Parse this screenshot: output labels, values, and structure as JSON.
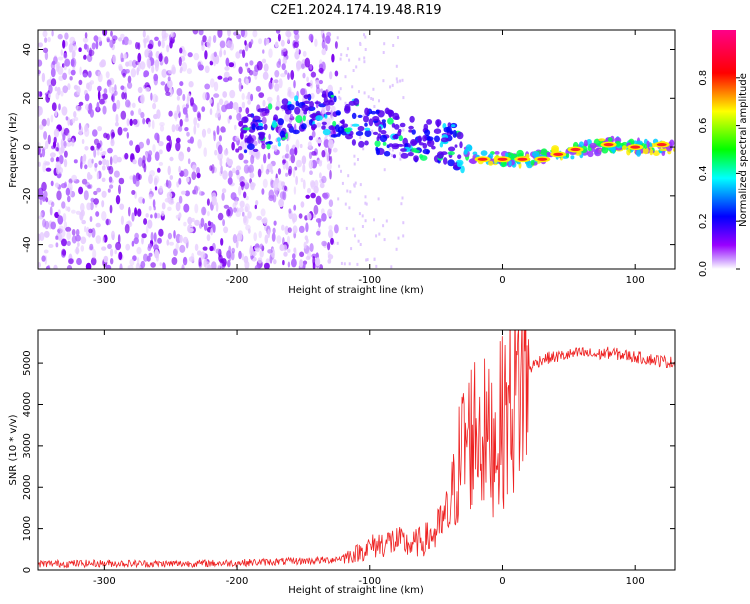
{
  "title": "C2E1.2024.174.19.48.R19",
  "colors": {
    "trace": "#ee2222",
    "axis": "#000000",
    "background": "#ffffff"
  },
  "chart_data": [
    {
      "type": "heatmap",
      "xlabel": "Height of straight line (km)",
      "ylabel": "Frequency (Hz)",
      "xlim": [
        -350,
        130
      ],
      "ylim": [
        -50,
        48
      ],
      "xticks": [
        -300,
        -200,
        -100,
        0,
        100
      ],
      "yticks": [
        -40,
        -20,
        0,
        20,
        40
      ],
      "grid": false,
      "colorbar": {
        "label": "Normalized spectral amplitude",
        "range": [
          0,
          1
        ],
        "ticks": [
          0.0,
          0.2,
          0.4,
          0.6,
          0.8
        ],
        "tick_labels": [
          "0.0",
          "0.2",
          "0.4",
          "0.6",
          "0.8"
        ],
        "colormap": [
          "#ffffff",
          "#9900ff",
          "#0000ff",
          "#00ffff",
          "#00ff00",
          "#ffff00",
          "#ff0000",
          "#ff00aa"
        ]
      },
      "ridge": {
        "x": [
          -195,
          -150,
          -130,
          -100,
          -80,
          -50,
          -35,
          -20,
          0,
          20,
          50,
          80,
          100,
          130
        ],
        "y": [
          5,
          12,
          14,
          8,
          5,
          2,
          0,
          -4,
          -5,
          -5,
          -2,
          1,
          0,
          0
        ]
      }
    },
    {
      "type": "line",
      "xlabel": "Height of straight line (km)",
      "ylabel": "SNR (10 * v/v)",
      "xlim": [
        -350,
        130
      ],
      "ylim": [
        0,
        5800
      ],
      "xticks": [
        -300,
        -200,
        -100,
        0,
        100
      ],
      "yticks": [
        0,
        1000,
        2000,
        3000,
        4000,
        5000
      ],
      "grid": false,
      "series": [
        {
          "x": [
            -350,
            -300,
            -250,
            -200,
            -170,
            -150,
            -130,
            -120,
            -110,
            -100,
            -90,
            -80,
            -70,
            -60,
            -50,
            -40,
            -35,
            -30,
            -25,
            -20,
            -15,
            -10,
            -5,
            0,
            5,
            10,
            15,
            20,
            25,
            30,
            40,
            50,
            60,
            70,
            80,
            90,
            100,
            110,
            120,
            130
          ],
          "values": [
            150,
            160,
            150,
            170,
            200,
            220,
            240,
            300,
            400,
            550,
            650,
            700,
            600,
            700,
            900,
            1400,
            2200,
            3000,
            3200,
            3500,
            3300,
            3100,
            3200,
            3600,
            4000,
            4300,
            4600,
            4850,
            5000,
            5100,
            5150,
            5200,
            5250,
            5200,
            5250,
            5200,
            5150,
            5100,
            5050,
            5000
          ]
        }
      ]
    }
  ]
}
